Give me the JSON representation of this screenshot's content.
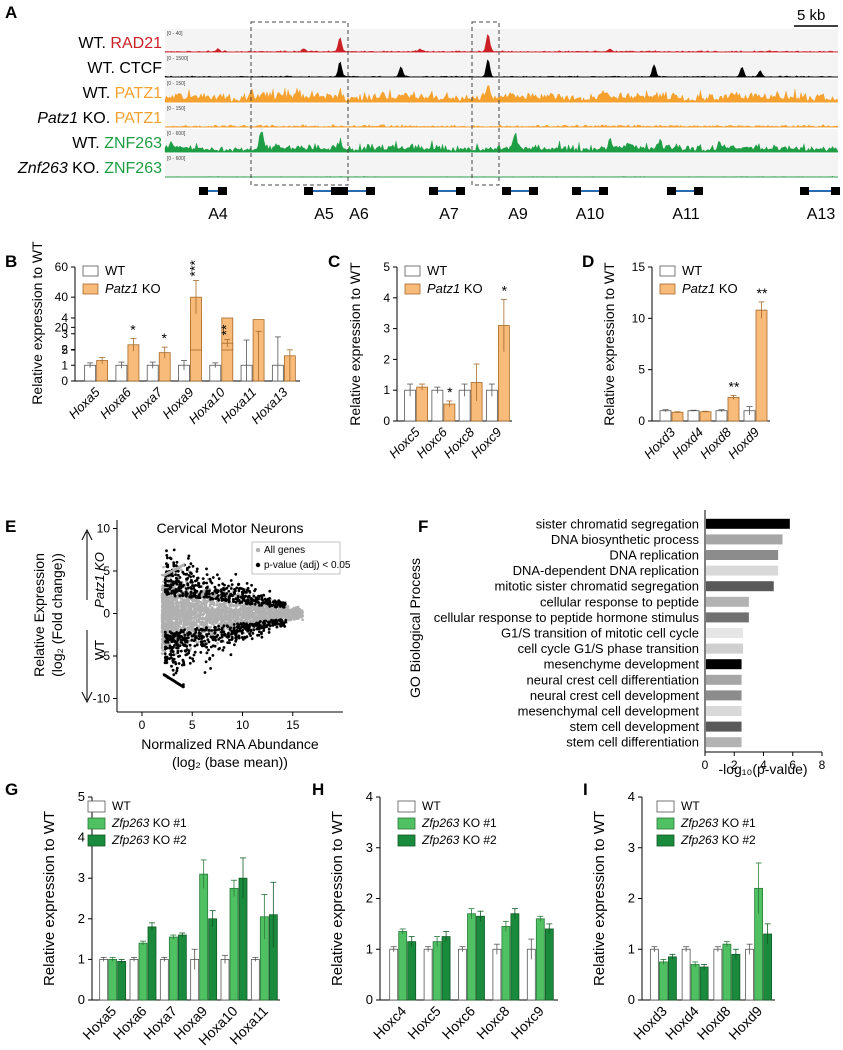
{
  "panel_letters": [
    "A",
    "B",
    "C",
    "D",
    "E",
    "F",
    "G",
    "H",
    "I"
  ],
  "panelA": {
    "scalebar": "5 kb",
    "tracks": [
      {
        "prefix": "WT.",
        "prefix_italic": false,
        "factor": "RAD21",
        "factor_color": "#cc2027",
        "range": "[0 - 40]",
        "color": "#cc2027",
        "fill_opacity": 1
      },
      {
        "prefix": "WT.",
        "prefix_italic": false,
        "factor": "CTCF",
        "factor_color": "#000000",
        "range": "[0 - 1500]",
        "color": "#000000",
        "fill_opacity": 1
      },
      {
        "prefix": "WT.",
        "prefix_italic": false,
        "factor": "PATZ1",
        "factor_color": "#f5a12e",
        "range": "[0 - 150]",
        "color": "#f5a12e",
        "fill_opacity": 1
      },
      {
        "prefix": "Patz1",
        "prefix_italic": true,
        "suffix": " KO.",
        "factor": "PATZ1",
        "factor_color": "#f5a12e",
        "range": "[0 - 150]",
        "color": "#f5a12e",
        "fill_opacity": 1
      },
      {
        "prefix": "WT.",
        "prefix_italic": false,
        "factor": "ZNF263",
        "factor_color": "#1e9e44",
        "range": "[0 - 600]",
        "color": "#1e9e44",
        "fill_opacity": 1
      },
      {
        "prefix": "Znf263",
        "prefix_italic": true,
        "suffix": " KO.",
        "factor": "ZNF263",
        "factor_color": "#1e9e44",
        "range": "[0 - 600]",
        "color": "#1e9e44",
        "fill_opacity": 1
      }
    ],
    "genes": [
      "A4",
      "A5",
      "A6",
      "A7",
      "A9",
      "A10",
      "A11",
      "A13"
    ]
  },
  "legend_bcd": {
    "wt": "WT",
    "ko_italic": "Patz1",
    "ko_rest": " KO"
  },
  "legend_ghi": {
    "wt": "WT",
    "ko1_italic": "Zfp263",
    "ko1_rest": " KO #1",
    "ko2_italic": "Zfp263",
    "ko2_rest": " KO #2"
  },
  "colors": {
    "wt": "#ffffff",
    "patz1_ko": "#f8bb79",
    "zfp_ko1": "#4fc162",
    "zfp_ko2": "#1a8a3c",
    "all_genes": "#b0b0b0",
    "sig_genes": "#000000"
  },
  "chart_data": [
    {
      "panel": "B",
      "type": "bar",
      "ylabel": "Relative expression to WT",
      "broken_axis": true,
      "ylim_low": [
        0,
        4
      ],
      "yticks_low": [
        0,
        1,
        2,
        3,
        4
      ],
      "ylim_high": [
        5,
        60
      ],
      "yticks_high": [
        5,
        20,
        40,
        60
      ],
      "categories": [
        "Hoxa5",
        "Hoxa6",
        "Hoxa7",
        "Hoxa9",
        "Hoxa10",
        "Hoxa11",
        "Hoxa13"
      ],
      "series": [
        {
          "name": "WT",
          "values": [
            1.0,
            1.0,
            1.0,
            1.0,
            1.0,
            1.0,
            1.0
          ],
          "errors": [
            0.15,
            0.2,
            0.2,
            0.3,
            0.15,
            1.6,
            1.8
          ]
        },
        {
          "name": "Patz1 KO",
          "values": [
            1.3,
            2.3,
            1.8,
            40,
            9.5,
            3.9,
            1.6
          ],
          "errors": [
            0.2,
            0.4,
            0.35,
            11,
            2.5,
            13.5,
            3.5
          ]
        }
      ],
      "significance": [
        "",
        "*",
        "*",
        "***",
        "**",
        "",
        ""
      ]
    },
    {
      "panel": "C",
      "type": "bar",
      "ylabel": "Relative expression to WT",
      "ylim": [
        0,
        5
      ],
      "yticks": [
        0,
        1,
        2,
        3,
        4,
        5
      ],
      "categories": [
        "Hoxc5",
        "Hoxc6",
        "Hoxc8",
        "Hoxc9"
      ],
      "series": [
        {
          "name": "WT",
          "values": [
            1.0,
            1.0,
            1.0,
            1.0
          ],
          "errors": [
            0.2,
            0.1,
            0.2,
            0.2
          ]
        },
        {
          "name": "Patz1 KO",
          "values": [
            1.1,
            0.55,
            1.25,
            3.1
          ],
          "errors": [
            0.1,
            0.1,
            0.6,
            0.85
          ]
        }
      ],
      "significance": [
        "",
        "*",
        "",
        "*"
      ]
    },
    {
      "panel": "D",
      "type": "bar",
      "ylabel": "Relative expression to WT",
      "ylim": [
        0,
        15
      ],
      "yticks": [
        0,
        5,
        10,
        15
      ],
      "categories": [
        "Hoxd3",
        "Hoxd4",
        "Hoxd8",
        "Hoxd9"
      ],
      "series": [
        {
          "name": "WT",
          "values": [
            1.0,
            1.0,
            1.0,
            1.0
          ],
          "errors": [
            0.1,
            0.05,
            0.1,
            0.4
          ]
        },
        {
          "name": "Patz1 KO",
          "values": [
            0.85,
            0.9,
            2.3,
            10.8
          ],
          "errors": [
            0.05,
            0.05,
            0.2,
            0.8
          ]
        }
      ],
      "significance": [
        "",
        "",
        "**",
        "**"
      ]
    },
    {
      "panel": "E",
      "type": "scatter",
      "title": "Cervical Motor Neurons",
      "xlabel_line1": "Normalized RNA Abundance",
      "xlabel_line2": "(log₂ (base mean))",
      "ylabel_line1": "Relative Expression",
      "ylabel_line2": "(log₂ (Fold change))",
      "arrow_up_label": "Patz1 KO",
      "arrow_down_label": "WT",
      "xlim": [
        0,
        20
      ],
      "xticks": [
        0,
        5,
        10,
        15
      ],
      "ylim": [
        -11,
        11
      ],
      "yticks": [
        -10,
        -5,
        0,
        5,
        10
      ],
      "legend": [
        "All genes",
        "p-value (adj) < 0.05"
      ]
    },
    {
      "panel": "F",
      "type": "bar",
      "orientation": "horizontal",
      "ylabel": "GO Biological Process",
      "xlabel": "-log₁₀(p-value)",
      "xlim": [
        0,
        8
      ],
      "xticks": [
        0,
        2,
        4,
        6,
        8
      ],
      "categories": [
        "sister chromatid segregation",
        "DNA biosynthetic process",
        "DNA replication",
        "DNA-dependent DNA replication",
        "mitotic sister chromatid segregation",
        "cellular response to peptide",
        "cellular response to peptide hormone stimulus",
        "G1/S transition of mitotic cell cycle",
        "cell cycle G1/S phase transition",
        "mesenchyme development",
        "neural crest cell differentiation",
        "neural crest cell development",
        "mesenchymal cell development",
        "stem cell development",
        "stem cell differentiation"
      ],
      "values": [
        5.8,
        5.3,
        5.0,
        5.0,
        4.7,
        3.0,
        3.0,
        2.6,
        2.6,
        2.5,
        2.5,
        2.5,
        2.5,
        2.5,
        2.5
      ],
      "bar_colors": [
        "#000000",
        "#a6a6a6",
        "#8c8c8c",
        "#d9d9d9",
        "#595959",
        "#b3b3b3",
        "#707070",
        "#e6e6e6",
        "#cfcfcf",
        "#000000",
        "#a6a6a6",
        "#8c8c8c",
        "#d9d9d9",
        "#595959",
        "#b3b3b3"
      ]
    },
    {
      "panel": "G",
      "type": "bar",
      "ylabel": "Relative expression to WT",
      "ylim": [
        0,
        5
      ],
      "yticks": [
        0,
        1,
        2,
        3,
        4,
        5
      ],
      "categories": [
        "Hoxa5",
        "Hoxa6",
        "Hoxa7",
        "Hoxa9",
        "Hoxa10",
        "Hoxa11"
      ],
      "series": [
        {
          "name": "WT",
          "values": [
            1.0,
            1.0,
            1.0,
            1.0,
            1.0,
            1.0
          ],
          "errors": [
            0.05,
            0.05,
            0.05,
            0.25,
            0.1,
            0.05
          ]
        },
        {
          "name": "Zfp263 KO #1",
          "values": [
            1.0,
            1.4,
            1.55,
            3.1,
            2.75,
            2.05
          ],
          "errors": [
            0.05,
            0.05,
            0.05,
            0.35,
            0.2,
            0.55
          ]
        },
        {
          "name": "Zfp263 KO #2",
          "values": [
            0.95,
            1.8,
            1.6,
            2.0,
            3.0,
            2.1
          ],
          "errors": [
            0.05,
            0.1,
            0.05,
            0.2,
            0.5,
            0.8
          ]
        }
      ]
    },
    {
      "panel": "H",
      "type": "bar",
      "ylabel": "Relative expression to WT",
      "ylim": [
        0,
        4
      ],
      "yticks": [
        0,
        1,
        2,
        3,
        4
      ],
      "categories": [
        "Hoxc4",
        "Hoxc5",
        "Hoxc6",
        "Hoxc8",
        "Hoxc9"
      ],
      "series": [
        {
          "name": "WT",
          "values": [
            1.0,
            1.0,
            1.0,
            1.0,
            1.0
          ],
          "errors": [
            0.05,
            0.05,
            0.05,
            0.1,
            0.2
          ]
        },
        {
          "name": "Zfp263 KO #1",
          "values": [
            1.35,
            1.15,
            1.7,
            1.45,
            1.6
          ],
          "errors": [
            0.05,
            0.1,
            0.1,
            0.1,
            0.05
          ]
        },
        {
          "name": "Zfp263 KO #2",
          "values": [
            1.15,
            1.25,
            1.65,
            1.7,
            1.4
          ],
          "errors": [
            0.1,
            0.1,
            0.1,
            0.1,
            0.1
          ]
        }
      ]
    },
    {
      "panel": "I",
      "type": "bar",
      "ylabel": "Relative expression to WT",
      "ylim": [
        0,
        4
      ],
      "yticks": [
        0,
        1,
        2,
        3,
        4
      ],
      "categories": [
        "Hoxd3",
        "Hoxd4",
        "Hoxd8",
        "Hoxd9"
      ],
      "series": [
        {
          "name": "WT",
          "values": [
            1.0,
            1.0,
            1.0,
            1.0
          ],
          "errors": [
            0.05,
            0.05,
            0.05,
            0.1
          ]
        },
        {
          "name": "Zfp263 KO #1",
          "values": [
            0.75,
            0.7,
            1.1,
            2.2
          ],
          "errors": [
            0.05,
            0.05,
            0.05,
            0.5
          ]
        },
        {
          "name": "Zfp263 KO #2",
          "values": [
            0.85,
            0.65,
            0.9,
            1.3
          ],
          "errors": [
            0.05,
            0.05,
            0.1,
            0.2
          ]
        }
      ]
    }
  ]
}
